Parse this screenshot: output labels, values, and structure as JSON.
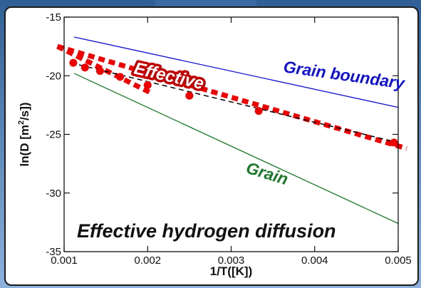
{
  "chart_data": {
    "type": "line",
    "title": "Effective hydrogen diffusion",
    "xlabel": "1/T([K])",
    "ylabel": "ln(D [m²/s])",
    "ylabel_main": "ln(D [m",
    "ylabel_sup": "2",
    "ylabel_tail": "/s])",
    "xlim": [
      0.001,
      0.005
    ],
    "ylim": [
      -35,
      -15
    ],
    "x_ticks": [
      "0.001",
      "0.002",
      "0.003",
      "0.004",
      "0.005"
    ],
    "y_ticks": [
      "-15",
      "-20",
      "-25",
      "-30",
      "-35"
    ],
    "labels": {
      "grain_boundary": "Grain boundary",
      "grain": "Grain",
      "effective": "Effective"
    },
    "colors": {
      "grain_boundary": "#1010d0",
      "grain": "#1a7a2a",
      "effective_points": "#ee0000",
      "effective_fit": "#000000",
      "effective_label_bg": "#c00000"
    },
    "series": [
      {
        "name": "Grain boundary",
        "style": "solid-line",
        "x": [
          0.00112,
          0.005
        ],
        "y": [
          -16.7,
          -22.7
        ]
      },
      {
        "name": "Grain",
        "style": "solid-line",
        "x": [
          0.00112,
          0.005
        ],
        "y": [
          -19.8,
          -32.6
        ]
      },
      {
        "name": "Effective",
        "style": "points",
        "x": [
          0.00111,
          0.00125,
          0.00143,
          0.00167,
          0.002,
          0.0025,
          0.00333,
          0.00495
        ],
        "y": [
          -18.9,
          -19.3,
          -19.6,
          -20.1,
          -20.8,
          -21.7,
          -23.0,
          -25.7
        ]
      },
      {
        "style": "dashed-line",
        "x": [
          0.00108,
          0.005
        ],
        "y": [
          -18.9,
          -25.7
        ]
      },
      {
        "style": "thick-dotted-line",
        "x": [
          0.00092,
          0.0051
        ],
        "y": [
          -17.5,
          -26.2
        ]
      },
      {
        "style": "thick-dotted-line",
        "x": [
          0.00092,
          0.00205
        ],
        "y": [
          -17.5,
          -21.5
        ]
      }
    ]
  }
}
